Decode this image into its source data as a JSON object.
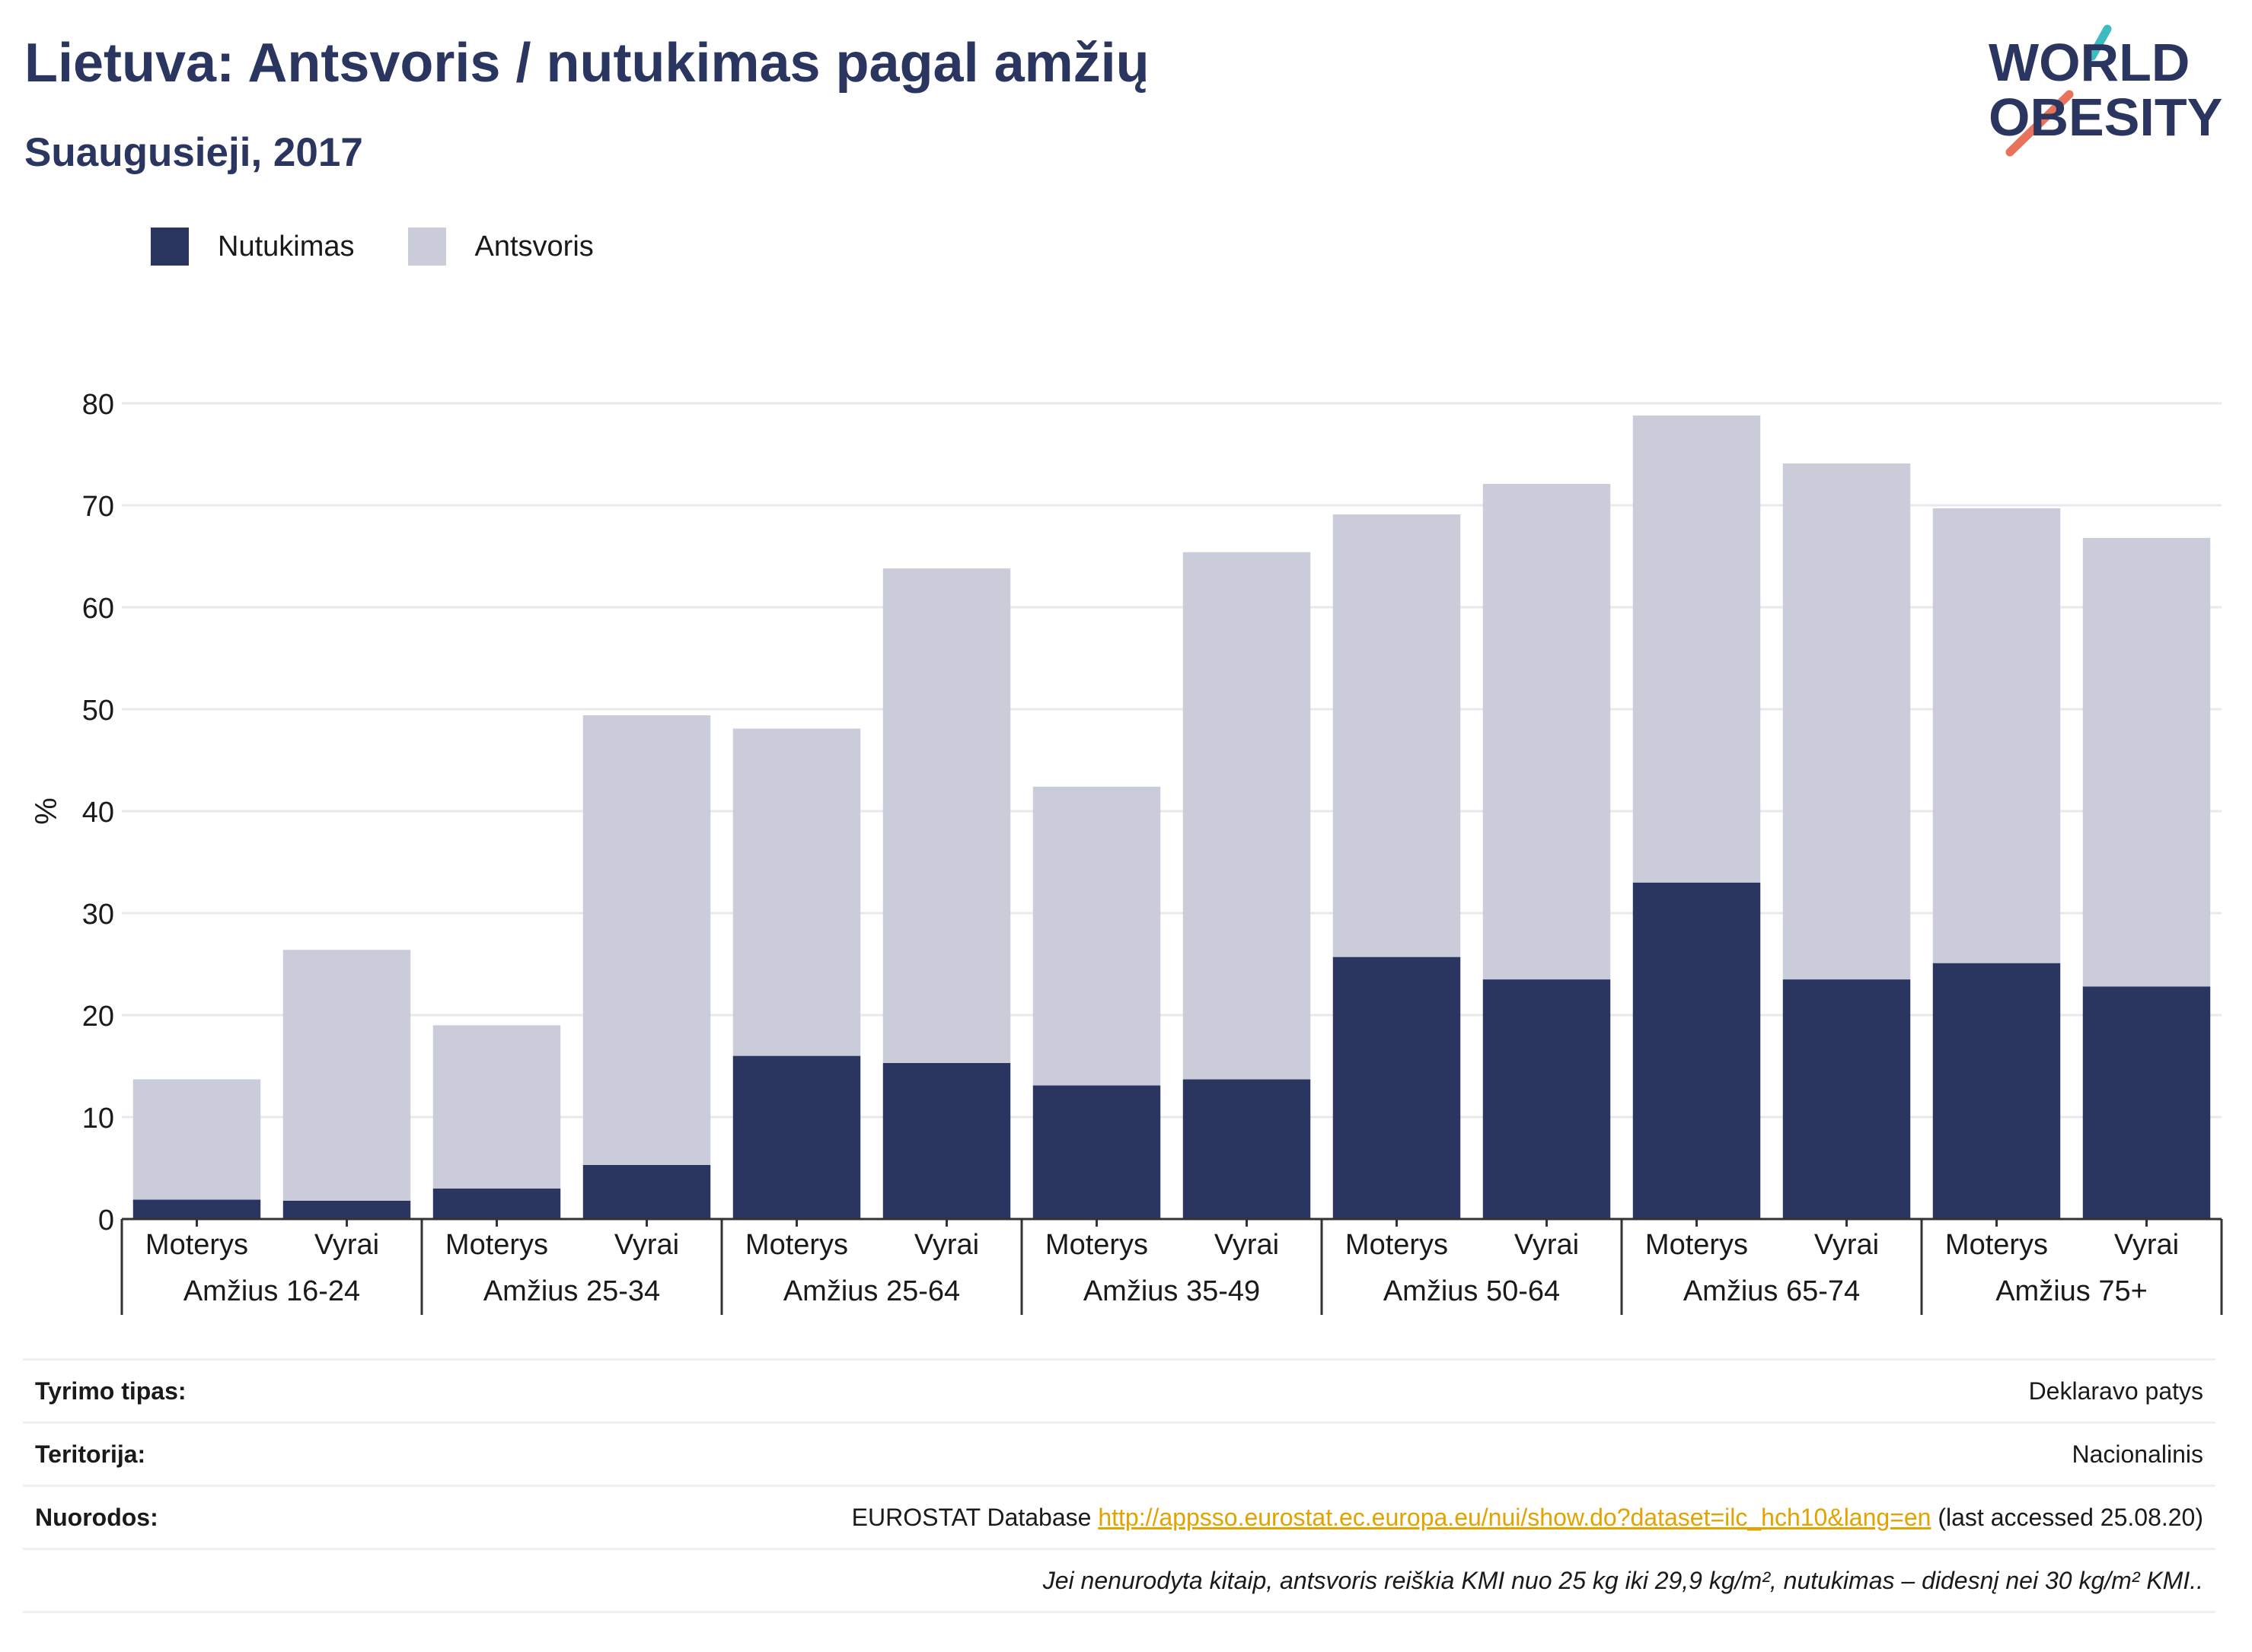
{
  "header": {
    "title": "Lietuva: Antsvoris / nutukimas pagal amžių",
    "subtitle": "Suaugusieji, 2017"
  },
  "logo": {
    "line1": "WORLD",
    "line2": "OBESITY",
    "accent_colors": [
      "#3bbcc0",
      "#e8735a"
    ],
    "text_color": "#2a3560"
  },
  "legend": {
    "items": [
      {
        "label": "Nutukimas",
        "color": "#2a3560"
      },
      {
        "label": "Antsvoris",
        "color": "#cacdd9"
      }
    ]
  },
  "chart_data": {
    "type": "bar",
    "stacked": true,
    "ylabel": "%",
    "ylim": [
      0,
      80
    ],
    "yticks": [
      0,
      10,
      20,
      30,
      40,
      50,
      60,
      70,
      80
    ],
    "grid": true,
    "legend_position": "top-left",
    "groups": [
      "Amžius 16-24",
      "Amžius 25-34",
      "Amžius 25-64",
      "Amžius 35-49",
      "Amžius 50-64",
      "Amžius 65-74",
      "Amžius 75+"
    ],
    "subcategories": [
      "Moterys",
      "Vyrai"
    ],
    "series": [
      {
        "name": "Nutukimas",
        "color": "#2a3560",
        "values": [
          1.9,
          1.8,
          3.0,
          5.3,
          16.0,
          15.3,
          13.1,
          13.7,
          25.7,
          23.5,
          33.0,
          23.5,
          25.1,
          22.8
        ]
      },
      {
        "name": "Antsvoris",
        "color": "#cacdd9",
        "values": [
          11.8,
          24.6,
          16.0,
          44.1,
          32.1,
          48.5,
          29.3,
          51.7,
          43.4,
          48.6,
          45.8,
          50.6,
          44.6,
          44.0
        ]
      }
    ]
  },
  "info": {
    "rows": [
      {
        "label": "Tyrimo tipas:",
        "value": "Deklaravo patys"
      },
      {
        "label": "Teritorija:",
        "value": "Nacionalinis"
      },
      {
        "label": "Nuorodos:",
        "value_prefix": "EUROSTAT Database ",
        "link": "http://appsso.eurostat.ec.europa.eu/nui/show.do?dataset=ilc_hch10&lang=en",
        "value_suffix": " (last accessed 25.08.20)"
      }
    ],
    "note": "Jei nenurodyta kitaip, antsvoris reiškia KMI nuo 25 kg iki 29,9 kg/m², nutukimas – didesnį nei 30 kg/m² KMI.."
  }
}
